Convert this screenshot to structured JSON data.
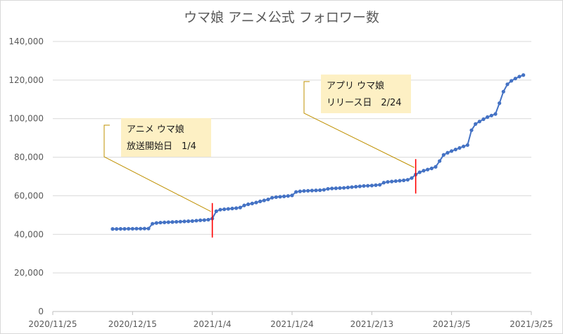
{
  "chart_data": {
    "type": "line",
    "title": "ウマ娘 アニメ公式 フォロワー数",
    "xlabel": "",
    "ylabel": "",
    "x_axis": {
      "min": "2020-11-25",
      "max": "2021-03-25",
      "tick_labels": [
        "2020/11/25",
        "2020/12/15",
        "2021/1/4",
        "2021/1/24",
        "2021/2/13",
        "2021/3/5",
        "2021/3/25"
      ]
    },
    "y_axis": {
      "min": 0,
      "max": 140000,
      "tick_labels": [
        "0",
        "20,000",
        "40,000",
        "60,000",
        "80,000",
        "100,000",
        "120,000",
        "140,000"
      ]
    },
    "grid": "horizontal",
    "legend": "none",
    "colors": {
      "series": "#4472c4",
      "marker_line": "#ff0000",
      "annotation_box": "#fdf0c4",
      "leader_line": "#bf9000"
    },
    "series": [
      {
        "values": [
          [
            "2020-12-10",
            42800
          ],
          [
            "2020-12-11",
            42800
          ],
          [
            "2020-12-12",
            42850
          ],
          [
            "2020-12-13",
            42850
          ],
          [
            "2020-12-14",
            42900
          ],
          [
            "2020-12-15",
            42900
          ],
          [
            "2020-12-16",
            42950
          ],
          [
            "2020-12-17",
            42950
          ],
          [
            "2020-12-18",
            43000
          ],
          [
            "2020-12-19",
            43000
          ],
          [
            "2020-12-20",
            45500
          ],
          [
            "2020-12-21",
            45900
          ],
          [
            "2020-12-22",
            46100
          ],
          [
            "2020-12-23",
            46200
          ],
          [
            "2020-12-24",
            46300
          ],
          [
            "2020-12-25",
            46400
          ],
          [
            "2020-12-26",
            46500
          ],
          [
            "2020-12-27",
            46600
          ],
          [
            "2020-12-28",
            46700
          ],
          [
            "2020-12-29",
            46800
          ],
          [
            "2020-12-30",
            46900
          ],
          [
            "2020-12-31",
            47100
          ],
          [
            "2021-01-01",
            47300
          ],
          [
            "2021-01-02",
            47400
          ],
          [
            "2021-01-03",
            47600
          ],
          [
            "2021-01-04",
            48200
          ],
          [
            "2021-01-05",
            52000
          ],
          [
            "2021-01-06",
            52800
          ],
          [
            "2021-01-07",
            53000
          ],
          [
            "2021-01-08",
            53200
          ],
          [
            "2021-01-09",
            53400
          ],
          [
            "2021-01-10",
            53600
          ],
          [
            "2021-01-11",
            53900
          ],
          [
            "2021-01-12",
            55000
          ],
          [
            "2021-01-13",
            55600
          ],
          [
            "2021-01-14",
            56000
          ],
          [
            "2021-01-15",
            56500
          ],
          [
            "2021-01-16",
            57100
          ],
          [
            "2021-01-17",
            57600
          ],
          [
            "2021-01-18",
            58100
          ],
          [
            "2021-01-19",
            59000
          ],
          [
            "2021-01-20",
            59300
          ],
          [
            "2021-01-21",
            59500
          ],
          [
            "2021-01-22",
            59700
          ],
          [
            "2021-01-23",
            59900
          ],
          [
            "2021-01-24",
            60200
          ],
          [
            "2021-01-25",
            62000
          ],
          [
            "2021-01-26",
            62300
          ],
          [
            "2021-01-27",
            62500
          ],
          [
            "2021-01-28",
            62600
          ],
          [
            "2021-01-29",
            62700
          ],
          [
            "2021-01-30",
            62800
          ],
          [
            "2021-01-31",
            62900
          ],
          [
            "2021-02-01",
            63100
          ],
          [
            "2021-02-02",
            63600
          ],
          [
            "2021-02-03",
            63800
          ],
          [
            "2021-02-04",
            63900
          ],
          [
            "2021-02-05",
            64000
          ],
          [
            "2021-02-06",
            64100
          ],
          [
            "2021-02-07",
            64300
          ],
          [
            "2021-02-08",
            64500
          ],
          [
            "2021-02-09",
            64700
          ],
          [
            "2021-02-10",
            64900
          ],
          [
            "2021-02-11",
            65100
          ],
          [
            "2021-02-12",
            65200
          ],
          [
            "2021-02-13",
            65300
          ],
          [
            "2021-02-14",
            65500
          ],
          [
            "2021-02-15",
            65700
          ],
          [
            "2021-02-16",
            66800
          ],
          [
            "2021-02-17",
            67200
          ],
          [
            "2021-02-18",
            67400
          ],
          [
            "2021-02-19",
            67600
          ],
          [
            "2021-02-20",
            67800
          ],
          [
            "2021-02-21",
            68000
          ],
          [
            "2021-02-22",
            68300
          ],
          [
            "2021-02-23",
            69200
          ],
          [
            "2021-02-24",
            71000
          ],
          [
            "2021-02-25",
            72200
          ],
          [
            "2021-02-26",
            73000
          ],
          [
            "2021-02-27",
            73600
          ],
          [
            "2021-02-28",
            74200
          ],
          [
            "2021-03-01",
            75000
          ],
          [
            "2021-03-02",
            78000
          ],
          [
            "2021-03-03",
            81200
          ],
          [
            "2021-03-04",
            82300
          ],
          [
            "2021-03-05",
            83200
          ],
          [
            "2021-03-06",
            84000
          ],
          [
            "2021-03-07",
            84800
          ],
          [
            "2021-03-08",
            85600
          ],
          [
            "2021-03-09",
            86300
          ],
          [
            "2021-03-10",
            94000
          ],
          [
            "2021-03-11",
            97200
          ],
          [
            "2021-03-12",
            98500
          ],
          [
            "2021-03-13",
            99700
          ],
          [
            "2021-03-14",
            100800
          ],
          [
            "2021-03-15",
            101600
          ],
          [
            "2021-03-16",
            102400
          ],
          [
            "2021-03-17",
            108000
          ],
          [
            "2021-03-18",
            114000
          ],
          [
            "2021-03-19",
            117800
          ],
          [
            "2021-03-20",
            119600
          ],
          [
            "2021-03-21",
            120800
          ],
          [
            "2021-03-22",
            121800
          ],
          [
            "2021-03-23",
            122600
          ]
        ]
      }
    ],
    "markers": [
      {
        "date": "2021-01-04",
        "lines": [
          "アニメ ウマ娘",
          "放送開始日　1/4"
        ]
      },
      {
        "date": "2021-02-24",
        "lines": [
          "アプリ ウマ娘",
          "リリース日　2/24"
        ]
      }
    ]
  }
}
